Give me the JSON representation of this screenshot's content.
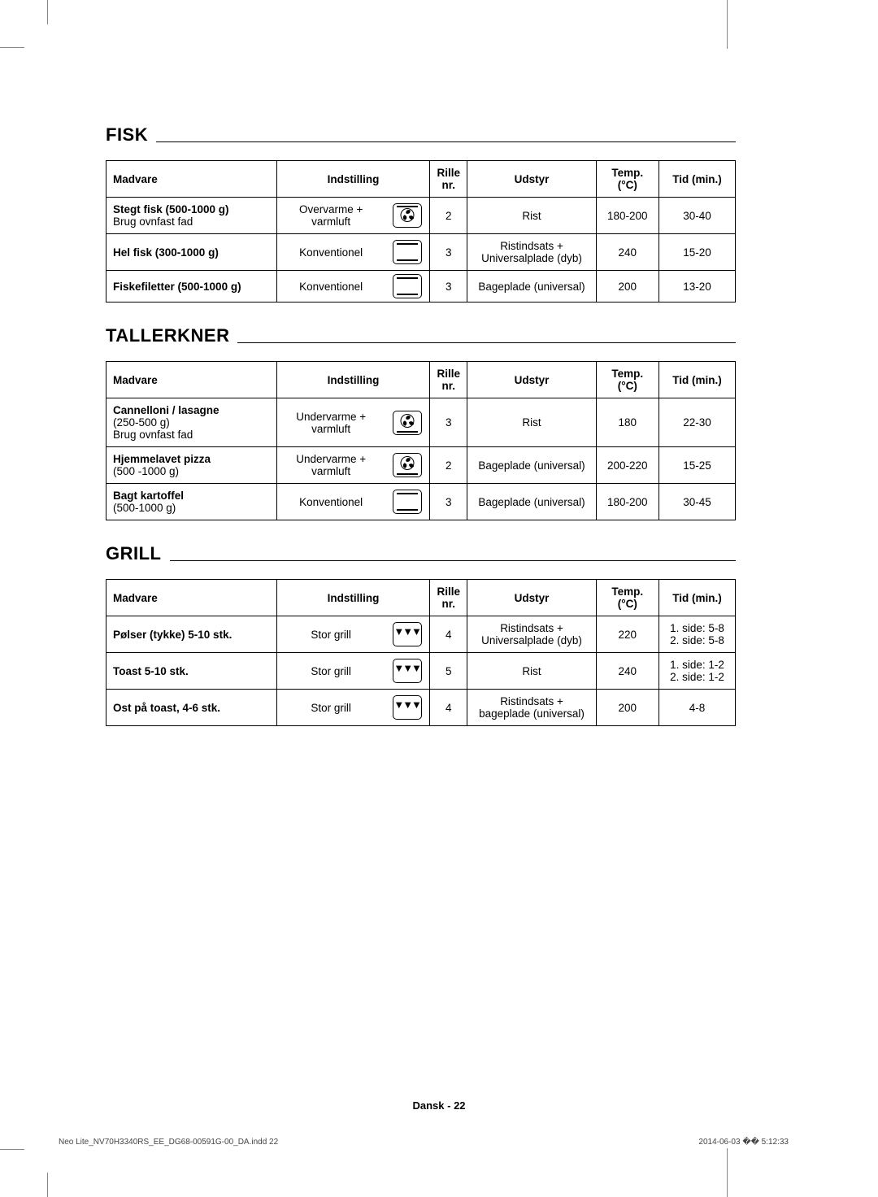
{
  "colors": {
    "text": "#000000",
    "border": "#000000",
    "bg": "#ffffff",
    "crop": "#888888"
  },
  "typography": {
    "section_title_size": 22,
    "body_size": 13.5,
    "footer_size": 13
  },
  "columns": {
    "madvare": "Madvare",
    "indstilling": "Indstilling",
    "rille": "Rille nr.",
    "udstyr": "Udstyr",
    "temp": "Temp. (°C)",
    "tid": "Tid (min.)"
  },
  "sections": {
    "fisk": {
      "title": "FISK",
      "rows": [
        {
          "madvare_bold": "Stegt fisk (500-1000 g)",
          "madvare_rest": "Brug ovnfast fad",
          "indstilling": "Overvarme + varmluft",
          "icon": "top-fan",
          "rille": "2",
          "udstyr": "Rist",
          "temp": "180-200",
          "tid": "30-40"
        },
        {
          "madvare_bold": "Hel fisk (300-1000 g)",
          "madvare_rest": "",
          "indstilling": "Konventionel",
          "icon": "conv",
          "rille": "3",
          "udstyr": "Ristindsats + Universalplade (dyb)",
          "temp": "240",
          "tid": "15-20"
        },
        {
          "madvare_bold": "Fiskefiletter (500-1000 g)",
          "madvare_rest": "",
          "indstilling": "Konventionel",
          "icon": "conv",
          "rille": "3",
          "udstyr": "Bageplade (universal)",
          "temp": "200",
          "tid": "13-20"
        }
      ]
    },
    "tallerkner": {
      "title": "TALLERKNER",
      "rows": [
        {
          "madvare_bold": "Cannelloni / lasagne",
          "madvare_rest": "(250-500 g)\nBrug ovnfast fad",
          "indstilling": "Undervarme + varmluft",
          "icon": "bot-fan",
          "rille": "3",
          "udstyr": "Rist",
          "temp": "180",
          "tid": "22-30"
        },
        {
          "madvare_bold": "Hjemmelavet pizza",
          "madvare_rest": "(500 -1000 g)",
          "indstilling": "Undervarme + varmluft",
          "icon": "bot-fan",
          "rille": "2",
          "udstyr": "Bageplade (universal)",
          "temp": "200-220",
          "tid": "15-25"
        },
        {
          "madvare_bold": "Bagt kartoffel",
          "madvare_rest": "(500-1000 g)",
          "indstilling": "Konventionel",
          "icon": "conv",
          "rille": "3",
          "udstyr": "Bageplade (universal)",
          "temp": "180-200",
          "tid": "30-45"
        }
      ]
    },
    "grill": {
      "title": "GRILL",
      "rows": [
        {
          "madvare_bold": "Pølser (tykke) 5-10 stk.",
          "madvare_rest": "",
          "indstilling": "Stor grill",
          "icon": "grill",
          "rille": "4",
          "udstyr": "Ristindsats + Universalplade (dyb)",
          "temp": "220",
          "tid": "1. side: 5-8\n2. side: 5-8"
        },
        {
          "madvare_bold": "Toast 5-10 stk.",
          "madvare_rest": "",
          "indstilling": "Stor grill",
          "icon": "grill",
          "rille": "5",
          "udstyr": "Rist",
          "temp": "240",
          "tid": "1. side: 1-2\n2. side: 1-2"
        },
        {
          "madvare_bold": "Ost på toast, 4-6 stk.",
          "madvare_rest": "",
          "indstilling": "Stor grill",
          "icon": "grill",
          "rille": "4",
          "udstyr": "Ristindsats + bageplade (universal)",
          "temp": "200",
          "tid": "4-8"
        }
      ]
    }
  },
  "footer": {
    "lang": "Dansk",
    "page": "22",
    "sep": " - "
  },
  "footline": {
    "left": "Neo Lite_NV70H3340RS_EE_DG68-00591G-00_DA.indd   22",
    "right": "2014-06-03   �� 5:12:33"
  }
}
